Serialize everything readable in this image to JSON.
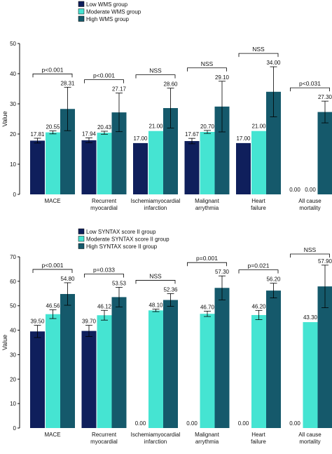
{
  "colors": {
    "low": "#0f1f5c",
    "moderate": "#45e4d2",
    "high": "#15596b",
    "axis": "#111111"
  },
  "chart_data": [
    {
      "type": "bar",
      "ylabel": "Value",
      "ylim": [
        0,
        50
      ],
      "yticks": [
        0,
        10,
        20,
        30,
        40,
        50
      ],
      "legend": [
        "Low WMS group",
        "Moderate WMS group",
        "High WMS group"
      ],
      "categories": [
        [
          "MACE"
        ],
        [
          "Recurrent",
          "myocardial"
        ],
        [
          "Ischemiamyocardial",
          "infarction"
        ],
        [
          "Malignant",
          "arrythmia"
        ],
        [
          "Heart",
          "failure"
        ],
        [
          "All cause",
          "mortality"
        ]
      ],
      "series": [
        {
          "name": "Low WMS group",
          "values": [
            17.81,
            17.94,
            17.0,
            17.67,
            17.0,
            0.0
          ],
          "labels": [
            "17.81",
            "17.94",
            "17.00",
            "17.67",
            "17.00",
            "0.00"
          ],
          "err": [
            0.8,
            0.8,
            0,
            0.9,
            0,
            0
          ]
        },
        {
          "name": "Moderate WMS group",
          "values": [
            20.55,
            20.43,
            21.0,
            20.7,
            21.0,
            0.0
          ],
          "labels": [
            "20.55",
            "20.43",
            "21.00",
            "20.70",
            "21.00",
            "0.00"
          ],
          "err": [
            0.5,
            0.5,
            0,
            0.5,
            0,
            0
          ]
        },
        {
          "name": "High WMS group",
          "values": [
            28.31,
            27.17,
            28.6,
            29.1,
            34.0,
            27.3
          ],
          "labels": [
            "28.31",
            "27.17",
            "28.60",
            "29.10",
            "34.00",
            "27.30"
          ],
          "err": [
            7.2,
            6.4,
            6.6,
            8.4,
            8.3,
            3.6
          ]
        }
      ],
      "annotations": [
        "p<0.001",
        "p<0.001",
        "NSS",
        "NSS",
        "NSS",
        "p<0.031"
      ]
    },
    {
      "type": "bar",
      "ylabel": "Value",
      "ylim": [
        0,
        70
      ],
      "yticks": [
        0,
        10,
        20,
        30,
        40,
        50,
        60,
        70
      ],
      "legend": [
        "Low SYNTAX score II group",
        "Moderate SYNTAX score II group",
        "High SYNTAX score II group"
      ],
      "categories": [
        [
          "MACE"
        ],
        [
          "Recurrent",
          "myocardial"
        ],
        [
          "Ischemiamyocardial",
          "infarction"
        ],
        [
          "Malignant",
          "arrythmia"
        ],
        [
          "Heart",
          "failure"
        ],
        [
          "All cause",
          "mortality"
        ]
      ],
      "series": [
        {
          "name": "Low SYNTAX score II group",
          "values": [
            39.5,
            39.7,
            0.0,
            0.0,
            0.0,
            0.0
          ],
          "labels": [
            "39.50",
            "39.70",
            "0.00",
            "0.00",
            "0.00",
            "0.00"
          ],
          "err": [
            2.5,
            2.3,
            0,
            0,
            0,
            0
          ]
        },
        {
          "name": "Moderate SYNTAX score II group",
          "values": [
            46.56,
            46.12,
            48.1,
            46.7,
            46.2,
            43.3
          ],
          "labels": [
            "46.56",
            "46.12",
            "48.10",
            "46.70",
            "46.20",
            "43.30"
          ],
          "err": [
            1.8,
            2.0,
            0.5,
            1.1,
            1.9,
            0
          ]
        },
        {
          "name": "High SYNTAX score II group",
          "values": [
            54.8,
            53.53,
            52.36,
            57.3,
            56.2,
            57.9
          ],
          "labels": [
            "54.80",
            "53.53",
            "52.36",
            "57.30",
            "56.20",
            "57.90"
          ],
          "err": [
            4.6,
            4.0,
            2.6,
            4.9,
            3.0,
            8.7
          ]
        }
      ],
      "annotations": [
        "p<0.001",
        "p=0.033",
        "NSS",
        "p=0.001",
        "p=0.021",
        "NSS"
      ]
    }
  ]
}
